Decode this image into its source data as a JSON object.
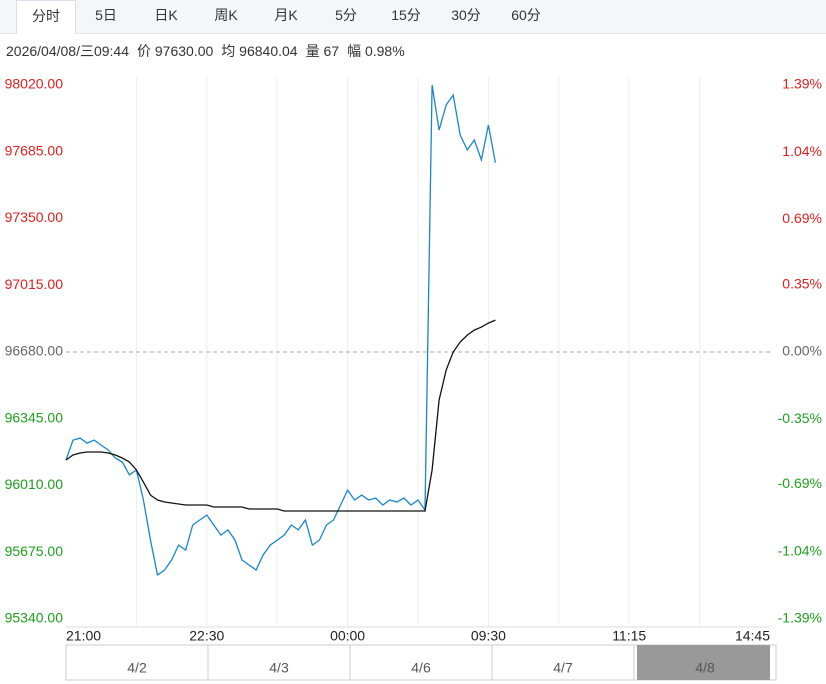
{
  "tabs": [
    "分时",
    "5日",
    "日K",
    "周K",
    "月K",
    "5分",
    "15分",
    "30分",
    "60分"
  ],
  "info": [
    "2026/04/08/三09:44",
    "价 97630.00",
    "均 96840.04",
    "量 67",
    "幅 0.98%"
  ],
  "navigator_labels": [
    "4/2",
    "4/3",
    "4/6",
    "4/7",
    "4/8"
  ],
  "chart_data": {
    "type": "line",
    "categories": [
      "21:00",
      null,
      null,
      null,
      null,
      null,
      null,
      null,
      null,
      null,
      null,
      null,
      null,
      null,
      null,
      null,
      null,
      null,
      null,
      null,
      "22:30",
      null,
      null,
      null,
      null,
      null,
      null,
      null,
      null,
      null,
      null,
      null,
      null,
      null,
      null,
      null,
      null,
      null,
      null,
      null,
      "00:00",
      null,
      null,
      null,
      null,
      null,
      null,
      null,
      null,
      null,
      null,
      null,
      null,
      null,
      null,
      null,
      null,
      null,
      null,
      null,
      "09:30",
      null,
      null,
      null,
      null,
      null,
      null,
      null,
      null,
      null,
      null,
      null,
      null,
      null,
      null,
      null,
      null,
      null,
      null,
      null,
      "11:15",
      null,
      null,
      null,
      null,
      null,
      null,
      null,
      null,
      null,
      null,
      null,
      null,
      null,
      null,
      null,
      null,
      null,
      null,
      null,
      "14:45"
    ],
    "series": [
      {
        "name": "价",
        "color": "#1a86c9",
        "values": [
          96138,
          96238,
          96248,
          96223,
          96238,
          96213,
          96188,
          96148,
          96128,
          96063,
          96088,
          95937,
          95736,
          95561,
          95586,
          95636,
          95711,
          95686,
          95812,
          95837,
          95862,
          95812,
          95761,
          95787,
          95736,
          95636,
          95611,
          95586,
          95661,
          95711,
          95736,
          95761,
          95812,
          95787,
          95837,
          95711,
          95736,
          95812,
          95837,
          95912,
          95987,
          95937,
          95962,
          95937,
          95947,
          95912,
          95937,
          95927,
          95947,
          95912,
          95937,
          95887,
          98020,
          97794,
          97920,
          97970,
          97769,
          97694,
          97744,
          97644,
          97819,
          97630,
          null,
          null,
          null,
          null,
          null,
          null,
          null,
          null,
          null,
          null,
          null,
          null,
          null,
          null,
          null,
          null,
          null,
          null,
          null,
          null,
          null,
          null,
          null,
          null,
          null,
          null,
          null,
          null,
          null,
          null,
          null,
          null,
          null,
          null,
          null,
          null,
          null,
          null,
          null
        ]
      },
      {
        "name": "均",
        "color": "#111111",
        "values": [
          96138,
          96163,
          96173,
          96178,
          96178,
          96178,
          96173,
          96163,
          96148,
          96128,
          96088,
          96027,
          95962,
          95937,
          95927,
          95922,
          95917,
          95912,
          95912,
          95912,
          95912,
          95902,
          95902,
          95902,
          95902,
          95902,
          95892,
          95892,
          95892,
          95892,
          95892,
          95882,
          95882,
          95882,
          95882,
          95882,
          95882,
          95882,
          95882,
          95882,
          95882,
          95882,
          95882,
          95882,
          95882,
          95882,
          95882,
          95882,
          95882,
          95882,
          95882,
          95882,
          96088,
          96439,
          96590,
          96680,
          96730,
          96765,
          96790,
          96805,
          96825,
          96840,
          null,
          null,
          null,
          null,
          null,
          null,
          null,
          null,
          null,
          null,
          null,
          null,
          null,
          null,
          null,
          null,
          null,
          null,
          null,
          null,
          null,
          null,
          null,
          null,
          null,
          null,
          null,
          null,
          null,
          null,
          null,
          null,
          null,
          null,
          null,
          null,
          null,
          null,
          null
        ]
      }
    ],
    "ylim": [
      95340,
      98020
    ],
    "yticks": [
      {
        "value": 98020,
        "label": "98020.00"
      },
      {
        "value": 97685,
        "label": "97685.00"
      },
      {
        "value": 97350,
        "label": "97350.00"
      },
      {
        "value": 97015,
        "label": "97015.00"
      },
      {
        "value": 96680,
        "label": "96680.00"
      },
      {
        "value": 96345,
        "label": "96345.00"
      },
      {
        "value": 96010,
        "label": "96010.00"
      },
      {
        "value": 95675,
        "label": "95675.00"
      },
      {
        "value": 95340,
        "label": "95340.00"
      }
    ],
    "y2lim": [
      -1.39,
      1.39
    ],
    "y2ticks": [
      {
        "value": 1.39,
        "label": "1.39%"
      },
      {
        "value": 1.04,
        "label": "1.04%"
      },
      {
        "value": 0.69,
        "label": "0.69%"
      },
      {
        "value": 0.35,
        "label": "0.35%"
      },
      {
        "value": 0,
        "label": "0.00%"
      },
      {
        "value": -0.35,
        "label": "-0.35%"
      },
      {
        "value": -0.69,
        "label": "-0.69%"
      },
      {
        "value": -1.04,
        "label": "-1.04%"
      },
      {
        "value": -1.39,
        "label": "-1.39%"
      }
    ],
    "up_color": "#e02020",
    "down_color": "#1ea01e",
    "flat_color": "#666666",
    "grid": true
  }
}
